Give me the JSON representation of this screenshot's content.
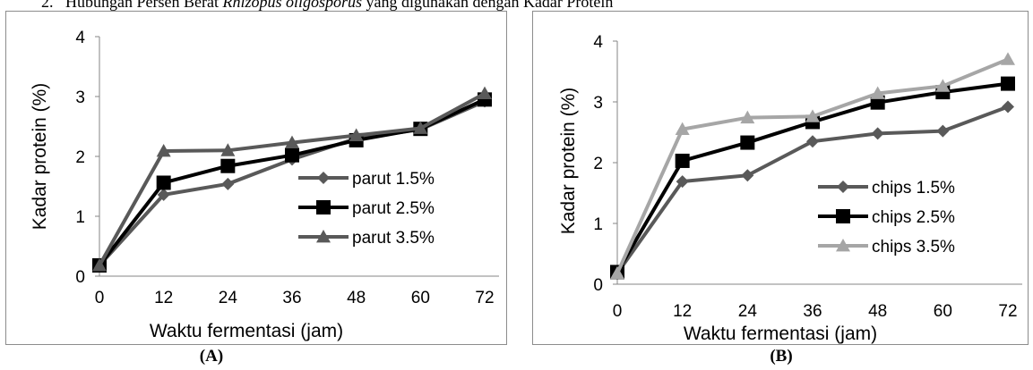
{
  "heading": {
    "number": "2.",
    "text_before": "Hubungan Persen Berat",
    "italic": "Rhizopus oligosporus",
    "text_after": "yang digunakan dengan Kadar Protein"
  },
  "captions": [
    "(A)",
    "(B)"
  ],
  "chart_data": [
    {
      "type": "line",
      "xlabel": "Waktu fermentasi (jam)",
      "ylabel": "Kadar protein (%)",
      "x": [
        0,
        12,
        24,
        36,
        48,
        60,
        72
      ],
      "xticks": [
        "0",
        "12",
        "24",
        "36",
        "48",
        "60",
        "72"
      ],
      "ylim": [
        0,
        4
      ],
      "yticks": [
        "0",
        "1",
        "2",
        "3",
        "4"
      ],
      "legend_position": "right",
      "series": [
        {
          "name": "parut 1.5%",
          "marker": "diamond",
          "color": "#595959",
          "values": [
            0.18,
            1.36,
            1.54,
            1.95,
            2.3,
            2.45,
            2.92
          ]
        },
        {
          "name": "parut 2.5%",
          "marker": "square",
          "color": "#000000",
          "values": [
            0.18,
            1.56,
            1.84,
            2.02,
            2.27,
            2.46,
            2.95
          ]
        },
        {
          "name": "parut 3.5%",
          "marker": "triangle",
          "color": "#595959",
          "values": [
            0.18,
            2.09,
            2.1,
            2.23,
            2.35,
            2.47,
            3.05
          ]
        }
      ]
    },
    {
      "type": "line",
      "xlabel": "Waktu fermentasi (jam)",
      "ylabel": "Kadar protein (%)",
      "x": [
        0,
        12,
        24,
        36,
        48,
        60,
        72
      ],
      "xticks": [
        "0",
        "12",
        "24",
        "36",
        "48",
        "60",
        "72"
      ],
      "ylim": [
        0,
        4
      ],
      "yticks": [
        "0",
        "1",
        "2",
        "3",
        "4"
      ],
      "legend_position": "right",
      "series": [
        {
          "name": "chips 1.5%",
          "marker": "diamond",
          "color": "#595959",
          "values": [
            0.18,
            1.69,
            1.79,
            2.35,
            2.48,
            2.52,
            2.92
          ]
        },
        {
          "name": "chips 2.5%",
          "marker": "square",
          "color": "#000000",
          "values": [
            0.2,
            2.03,
            2.33,
            2.67,
            2.99,
            3.16,
            3.3
          ]
        },
        {
          "name": "chips 3.5%",
          "marker": "triangle",
          "color": "#a6a6a6",
          "values": [
            0.18,
            2.55,
            2.74,
            2.76,
            3.14,
            3.26,
            3.7
          ]
        }
      ]
    }
  ]
}
